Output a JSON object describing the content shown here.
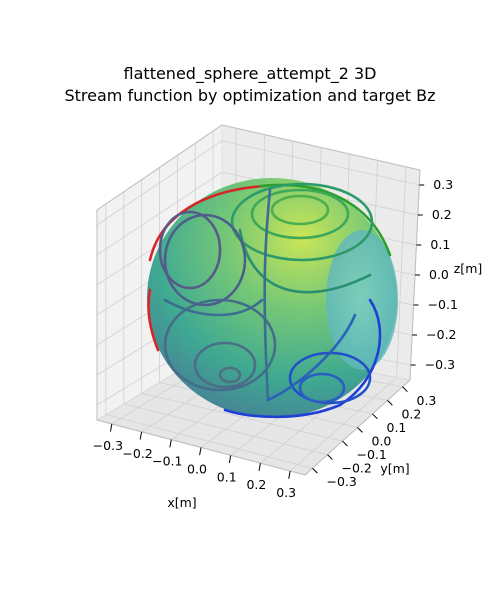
{
  "chart_data": {
    "type": "surface-3d",
    "title": "flattened_sphere_attempt_2 3D",
    "subtitle": "Stream function by optimization and target Bz",
    "xlabel": "x[m]",
    "ylabel": "y[m]",
    "zlabel": "z[m]",
    "x_ticks": [
      "−0.3",
      "−0.2",
      "−0.1",
      "0.0",
      "0.1",
      "0.2",
      "0.3"
    ],
    "y_ticks": [
      "−0.3",
      "−0.2",
      "−0.1",
      "0.0",
      "0.1",
      "0.2",
      "0.3"
    ],
    "z_ticks": [
      "−0.3",
      "−0.2",
      "−0.1",
      "0.0",
      "0.1",
      "0.2",
      "0.3"
    ],
    "xlim": [
      -0.35,
      0.35
    ],
    "ylim": [
      -0.35,
      0.35
    ],
    "zlim": [
      -0.35,
      0.35
    ],
    "grid": true,
    "surface_colormap": "viridis",
    "contour_colors": [
      "#d62728",
      "#2ca02c",
      "#1f3fd6",
      "#3b6e8f",
      "#2e9a6a"
    ]
  }
}
